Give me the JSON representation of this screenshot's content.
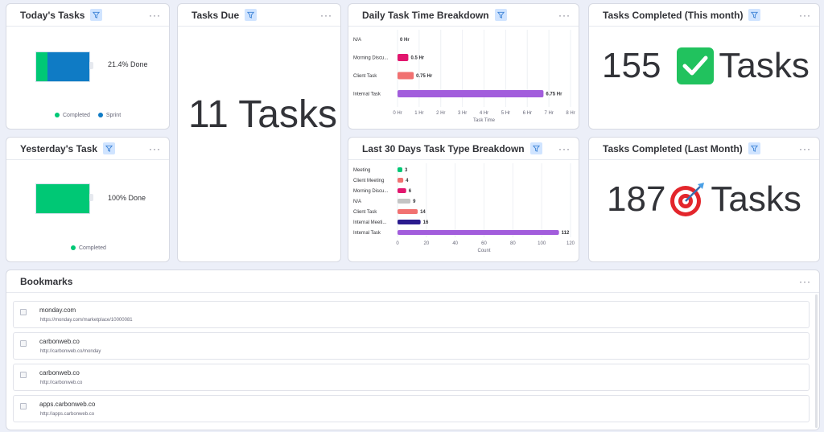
{
  "widgets": {
    "todays_tasks": {
      "title": "Today's Tasks",
      "done_label": "21.4% Done",
      "progress": {
        "completed": 0.214,
        "sprint": 0.786
      },
      "legend": [
        "Completed",
        "Sprint"
      ]
    },
    "tasks_due": {
      "title": "Tasks Due",
      "value": "11 Tasks"
    },
    "daily_breakdown": {
      "title": "Daily Task Time Breakdown"
    },
    "completed_this_month": {
      "title": "Tasks Completed (This month)",
      "count": "155",
      "unit": "Tasks",
      "icon": "check-mark-icon"
    },
    "yesterdays_task": {
      "title": "Yesterday's Task",
      "done_label": "100% Done",
      "progress": {
        "completed": 1.0
      },
      "legend": [
        "Completed"
      ]
    },
    "last30_breakdown": {
      "title": "Last 30 Days Task Type Breakdown"
    },
    "completed_last_month": {
      "title": "Tasks Completed (Last Month)",
      "count": "187",
      "unit": "Tasks",
      "icon": "bullseye-target-icon"
    }
  },
  "bookmarks": {
    "title": "Bookmarks",
    "items": [
      {
        "title": "monday.com",
        "url": "https://monday.com/marketplace/10000081"
      },
      {
        "title": "carbonweb.co",
        "url": "http://carbonweb.co/monday"
      },
      {
        "title": "carbonweb.co",
        "url": "http://carbonweb.co"
      },
      {
        "title": "apps.carbonweb.co",
        "url": "http://apps.carbonweb.co"
      }
    ]
  },
  "colors": {
    "completed": "#00c875",
    "sprint": "#0f7bc5",
    "filter_bg": "#d0e4ff",
    "magenta": "#e2166e",
    "salmon": "#f17171",
    "purple": "#a25ddc",
    "gray": "#c4c4c4",
    "navy": "#2b1b8e"
  },
  "chart_data": [
    {
      "type": "bar",
      "orientation": "horizontal",
      "categories": [
        "N/A",
        "Morning Discu...",
        "Client Task",
        "Internal Task"
      ],
      "values": [
        0,
        0.5,
        0.75,
        6.75
      ],
      "value_labels": [
        "0 Hr",
        "0.5 Hr",
        "0.75 Hr",
        "6.75 Hr"
      ],
      "colors": [
        "#c4c4c4",
        "#e2166e",
        "#f17171",
        "#a25ddc"
      ],
      "xlabel": "Task Time",
      "xlim": [
        0,
        8
      ],
      "xticks": [
        "0 Hr",
        "1 Hr",
        "2 Hr",
        "3 Hr",
        "4 Hr",
        "5 Hr",
        "6 Hr",
        "7 Hr",
        "8 Hr"
      ],
      "grid": true
    },
    {
      "type": "bar",
      "orientation": "horizontal",
      "categories": [
        "Meeting",
        "Client Meeting",
        "Morning Discu...",
        "N/A",
        "Client Task",
        "Internal Meeti...",
        "Internal Task"
      ],
      "values": [
        3,
        4,
        6,
        9,
        14,
        16,
        112
      ],
      "value_labels": [
        "3",
        "4",
        "6",
        "9",
        "14",
        "16",
        "112"
      ],
      "colors": [
        "#00c875",
        "#f17171",
        "#e2166e",
        "#c4c4c4",
        "#f17171",
        "#2b1b8e",
        "#a25ddc"
      ],
      "xlabel": "Count",
      "xlim": [
        0,
        120
      ],
      "xticks": [
        "0",
        "20",
        "40",
        "60",
        "80",
        "100",
        "120"
      ],
      "grid": true
    }
  ]
}
